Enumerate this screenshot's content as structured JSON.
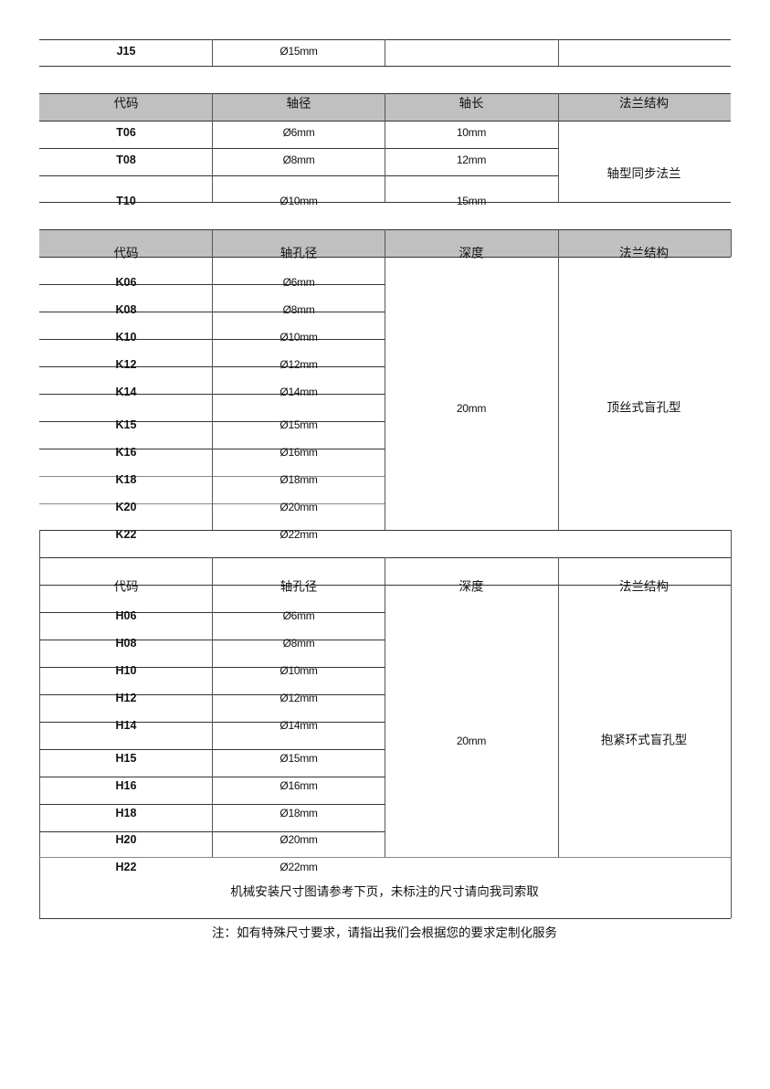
{
  "table_j": {
    "rows": [
      {
        "code": "J15",
        "diameter": "Ø15mm"
      }
    ]
  },
  "table_t": {
    "headers": [
      "代码",
      "轴径",
      "轴长",
      "法兰结构"
    ],
    "rows": [
      {
        "code": "T06",
        "diameter": "Ø6mm",
        "length": "10mm"
      },
      {
        "code": "T08",
        "diameter": "Ø8mm",
        "length": "12mm"
      },
      {
        "code": "T10",
        "diameter": "Ø10mm",
        "length": "15mm"
      }
    ],
    "structure": "轴型同步法兰"
  },
  "table_k": {
    "headers": [
      "代码",
      "轴孔径",
      "深度",
      "法兰结构"
    ],
    "rows": [
      {
        "code": "K06",
        "diameter": "Ø6mm"
      },
      {
        "code": "K08",
        "diameter": "Ø8mm"
      },
      {
        "code": "K10",
        "diameter": "Ø10mm"
      },
      {
        "code": "K12",
        "diameter": "Ø12mm"
      },
      {
        "code": "K14",
        "diameter": "Ø14mm"
      },
      {
        "code": "K15",
        "diameter": "Ø15mm"
      },
      {
        "code": "K16",
        "diameter": "Ø16mm"
      },
      {
        "code": "K18",
        "diameter": "Ø18mm"
      },
      {
        "code": "K20",
        "diameter": "Ø20mm"
      },
      {
        "code": "K22",
        "diameter": "Ø22mm"
      }
    ],
    "depth": "20mm",
    "structure": "顶丝式盲孔型"
  },
  "table_h": {
    "headers": [
      "代码",
      "轴孔径",
      "深度",
      "法兰结构"
    ],
    "rows": [
      {
        "code": "H06",
        "diameter": "Ø6mm"
      },
      {
        "code": "H08",
        "diameter": "Ø8mm"
      },
      {
        "code": "H10",
        "diameter": "Ø10mm"
      },
      {
        "code": "H12",
        "diameter": "Ø12mm"
      },
      {
        "code": "H14",
        "diameter": "Ø14mm"
      },
      {
        "code": "H15",
        "diameter": "Ø15mm"
      },
      {
        "code": "H16",
        "diameter": "Ø16mm"
      },
      {
        "code": "H18",
        "diameter": "Ø18mm"
      },
      {
        "code": "H20",
        "diameter": "Ø20mm"
      },
      {
        "code": "H22",
        "diameter": "Ø22mm"
      }
    ],
    "depth": "20mm",
    "structure": "抱紧环式盲孔型"
  },
  "footer_text": "机械安装尺寸图请参考下页，未标注的尺寸请向我司索取",
  "note": "注：如有特殊尺寸要求，请指出我们会根据您的要求定制化服务"
}
